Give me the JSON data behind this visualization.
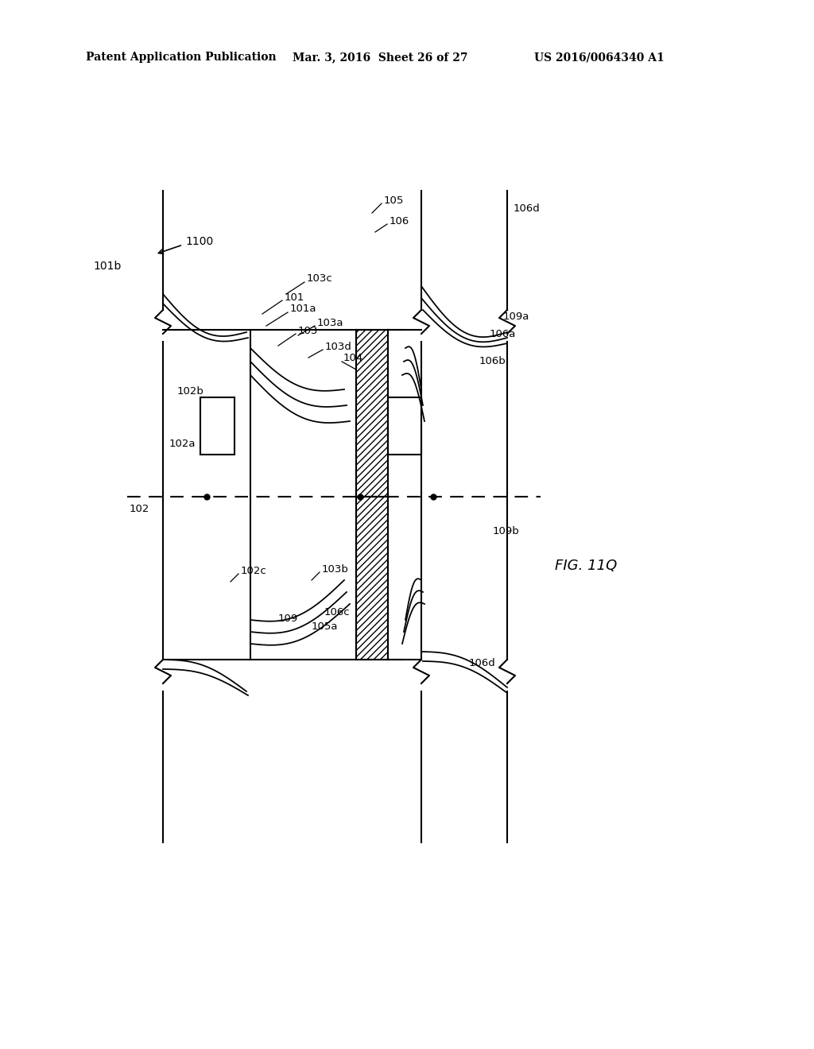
{
  "bg_color": "#ffffff",
  "line_color": "#000000",
  "header_left": "Patent Application Publication",
  "header_mid": "Mar. 3, 2016  Sheet 26 of 27",
  "header_right": "US 2016/0064340 A1",
  "fig_label": "FIG. 11Q"
}
